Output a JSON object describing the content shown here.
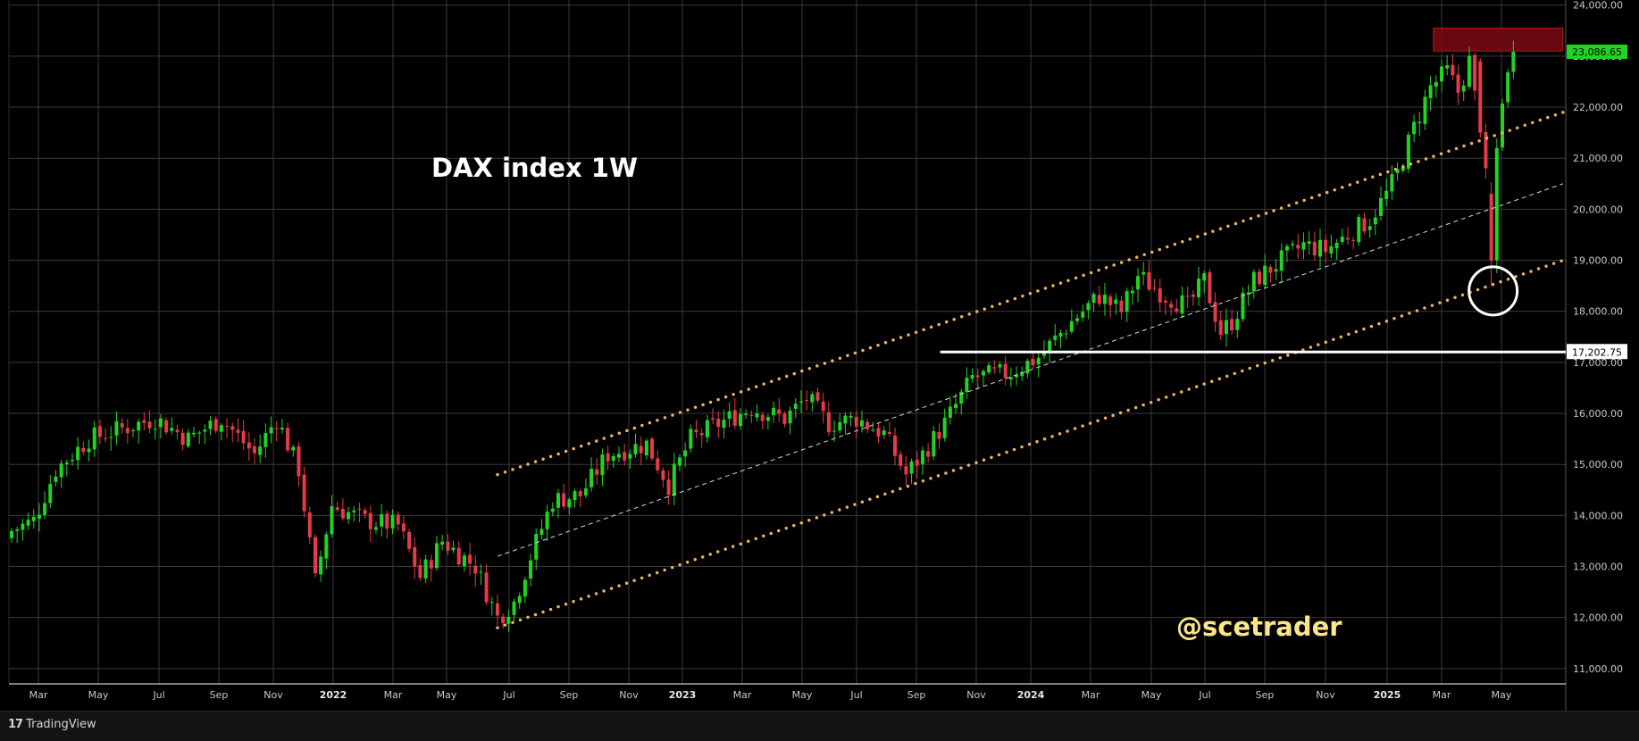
{
  "chart_data": {
    "type": "candlestick",
    "title": "DAX index 1W",
    "watermark": "@scetrader",
    "ylim": [
      10700,
      24100
    ],
    "y_ticks": [
      "11,000.00",
      "12,000.00",
      "13,000.00",
      "14,000.00",
      "15,000.00",
      "16,000.00",
      "17,000.00",
      "18,000.00",
      "19,000.00",
      "20,000.00",
      "21,000.00",
      "22,000.00",
      "23,000.00",
      "24,000.00"
    ],
    "x_ticks": [
      "Mar",
      "May",
      "Jul",
      "Sep",
      "Nov",
      "2022",
      "Mar",
      "May",
      "Jul",
      "Sep",
      "Nov",
      "2023",
      "Mar",
      "May",
      "Jul",
      "Sep",
      "Nov",
      "2024",
      "Mar",
      "May",
      "Jul",
      "Sep",
      "Nov",
      "2025",
      "Mar",
      "May"
    ],
    "last_price": "23,086.65",
    "level_label": "17,202.75",
    "level_value": 17202.75,
    "colors": {
      "up": "#22d422",
      "down": "#e63a4a",
      "channel": "#f0b35b",
      "level": "#ffffff",
      "last_price_bg": "#22d422",
      "watermark": "#fde68a"
    },
    "anchors": [
      [
        0,
        13700
      ],
      [
        4,
        13900
      ],
      [
        8,
        14900
      ],
      [
        14,
        15500
      ],
      [
        20,
        15700
      ],
      [
        26,
        15900
      ],
      [
        32,
        15500
      ],
      [
        38,
        15900
      ],
      [
        44,
        15200
      ],
      [
        48,
        15900
      ],
      [
        52,
        14900
      ],
      [
        55,
        12700
      ],
      [
        58,
        14200
      ],
      [
        64,
        13900
      ],
      [
        70,
        13800
      ],
      [
        74,
        12800
      ],
      [
        78,
        13500
      ],
      [
        84,
        13000
      ],
      [
        88,
        12000
      ],
      [
        91,
        12300
      ],
      [
        94,
        13200
      ],
      [
        98,
        14300
      ],
      [
        103,
        14400
      ],
      [
        108,
        15200
      ],
      [
        115,
        15400
      ],
      [
        119,
        14600
      ],
      [
        123,
        15500
      ],
      [
        128,
        15800
      ],
      [
        134,
        16100
      ],
      [
        140,
        15900
      ],
      [
        144,
        16300
      ],
      [
        148,
        15800
      ],
      [
        153,
        15900
      ],
      [
        158,
        15600
      ],
      [
        162,
        14800
      ],
      [
        165,
        15200
      ],
      [
        169,
        15800
      ],
      [
        174,
        16700
      ],
      [
        181,
        16800
      ],
      [
        186,
        17100
      ],
      [
        192,
        17800
      ],
      [
        197,
        18300
      ],
      [
        201,
        18000
      ],
      [
        204,
        18700
      ],
      [
        209,
        18300
      ],
      [
        213,
        18100
      ],
      [
        216,
        18600
      ],
      [
        219,
        17600
      ],
      [
        221,
        17800
      ],
      [
        225,
        18600
      ],
      [
        230,
        19000
      ],
      [
        234,
        19300
      ],
      [
        238,
        19200
      ],
      [
        242,
        19500
      ],
      [
        246,
        19800
      ],
      [
        249,
        20300
      ],
      [
        251,
        20700
      ],
      [
        254,
        21600
      ],
      [
        257,
        22400
      ],
      [
        260,
        22700
      ],
      [
        262,
        22300
      ],
      [
        264,
        22900
      ],
      [
        266,
        21500
      ],
      [
        267,
        20600
      ],
      [
        268,
        19000
      ],
      [
        269,
        21200
      ],
      [
        270,
        22200
      ],
      [
        271,
        22600
      ],
      [
        272,
        23086
      ]
    ],
    "channel_lines": [
      {
        "style": "dots",
        "from": [
          88,
          14800
        ],
        "to": [
          281,
          21900
        ]
      },
      {
        "style": "dots",
        "from": [
          88,
          11800
        ],
        "to": [
          281,
          19000
        ]
      },
      {
        "style": "dashes",
        "from": [
          88,
          13200
        ],
        "to": [
          281,
          20500
        ]
      }
    ],
    "resistance_zone": [
      23100,
      23550
    ],
    "highlight_circle": {
      "x": 268,
      "y": 18400
    }
  },
  "footer": {
    "brand": "TradingView",
    "logo": "17"
  }
}
